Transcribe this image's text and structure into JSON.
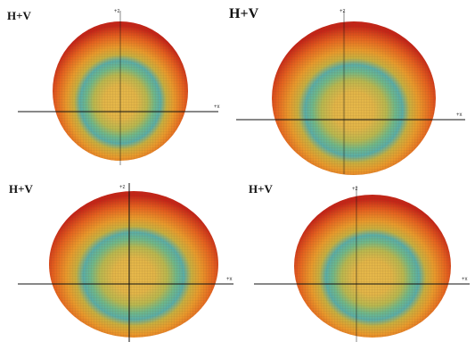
{
  "panels": [
    {
      "label": "H+V",
      "axis_top": "+z",
      "axis_right": "+x"
    },
    {
      "label": "H+V",
      "axis_top": "+z",
      "axis_right": "+x"
    },
    {
      "label": "H+V",
      "axis_top": "+z",
      "axis_right": "+x"
    },
    {
      "label": "H+V",
      "axis_top": "+z",
      "axis_right": "+x"
    }
  ]
}
